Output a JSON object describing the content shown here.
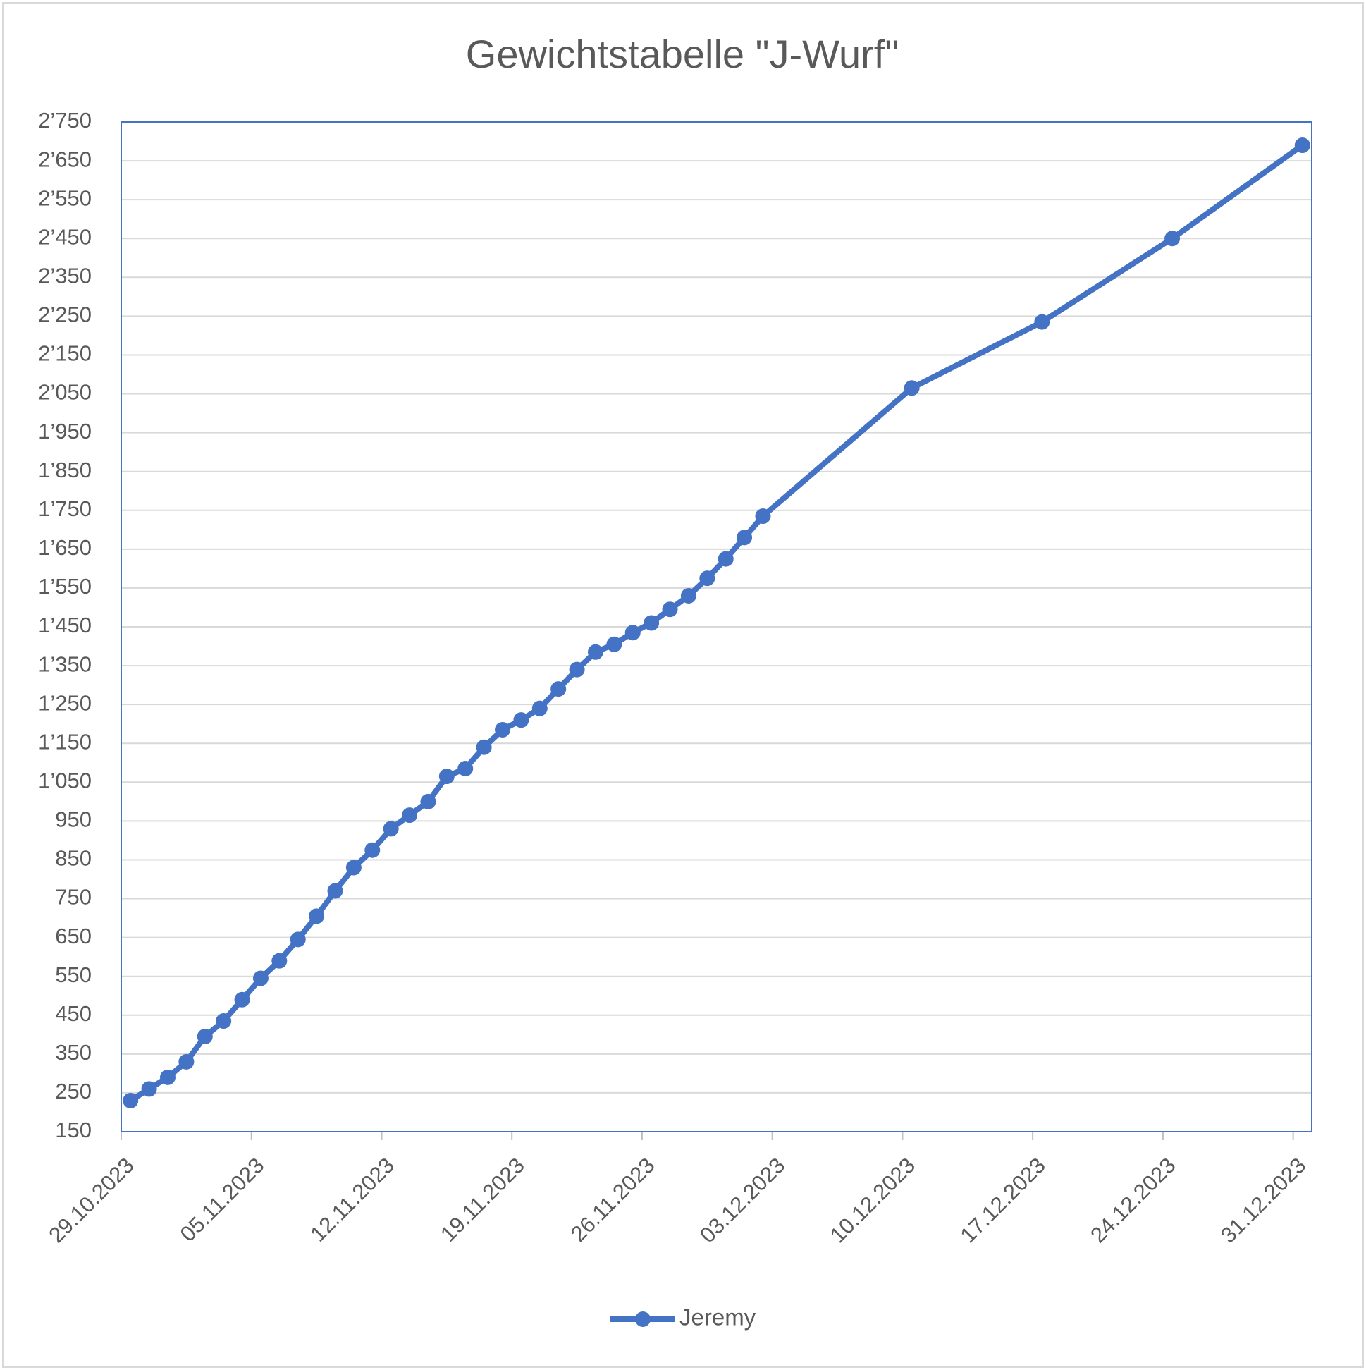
{
  "chart_data": {
    "type": "line",
    "title": "Gewichtstabelle \"J-Wurf\"",
    "x": [
      "29.10.2023",
      "30.10.2023",
      "31.10.2023",
      "01.11.2023",
      "02.11.2023",
      "03.11.2023",
      "04.11.2023",
      "05.11.2023",
      "06.11.2023",
      "07.11.2023",
      "08.11.2023",
      "09.11.2023",
      "10.11.2023",
      "11.11.2023",
      "12.11.2023",
      "13.11.2023",
      "14.11.2023",
      "15.11.2023",
      "16.11.2023",
      "17.11.2023",
      "18.11.2023",
      "19.11.2023",
      "20.11.2023",
      "21.11.2023",
      "22.11.2023",
      "23.11.2023",
      "24.11.2023",
      "25.11.2023",
      "26.11.2023",
      "27.11.2023",
      "28.11.2023",
      "29.11.2023",
      "30.11.2023",
      "01.12.2023",
      "02.12.2023",
      "10.12.2023",
      "17.12.2023",
      "24.12.2023",
      "31.12.2023"
    ],
    "series": [
      {
        "name": "Jeremy",
        "color": "#4472c4",
        "values": [
          230,
          260,
          290,
          330,
          395,
          435,
          490,
          545,
          590,
          645,
          705,
          770,
          830,
          875,
          930,
          965,
          1000,
          1065,
          1085,
          1140,
          1185,
          1210,
          1240,
          1290,
          1340,
          1385,
          1405,
          1435,
          1460,
          1495,
          1530,
          1575,
          1625,
          1680,
          1735,
          2065,
          2235,
          2450,
          2690
        ]
      }
    ],
    "xlim": [
      "29.10.2023",
      "01.01.2024"
    ],
    "xticks": [
      "29.10.2023",
      "05.11.2023",
      "12.11.2023",
      "19.11.2023",
      "26.11.2023",
      "03.12.2023",
      "10.12.2023",
      "17.12.2023",
      "24.12.2023",
      "31.12.2023"
    ],
    "ylim": [
      150,
      2750
    ],
    "yticks": [
      150,
      250,
      350,
      450,
      550,
      650,
      750,
      850,
      950,
      {
        "value": 1050,
        "label": "1’050"
      },
      {
        "value": 1150,
        "label": "1’150"
      },
      {
        "value": 1250,
        "label": "1’250"
      },
      {
        "value": 1350,
        "label": "1’350"
      },
      {
        "value": 1450,
        "label": "1’450"
      },
      {
        "value": 1550,
        "label": "1’550"
      },
      {
        "value": 1650,
        "label": "1’650"
      },
      {
        "value": 1750,
        "label": "1’750"
      },
      {
        "value": 1850,
        "label": "1’850"
      },
      {
        "value": 1950,
        "label": "1’950"
      },
      {
        "value": 2050,
        "label": "2’050"
      },
      {
        "value": 2150,
        "label": "2’150"
      },
      {
        "value": 2250,
        "label": "2’250"
      },
      {
        "value": 2350,
        "label": "2’350"
      },
      {
        "value": 2450,
        "label": "2’450"
      },
      {
        "value": 2550,
        "label": "2’550"
      },
      {
        "value": 2650,
        "label": "2’650"
      },
      {
        "value": 2750,
        "label": "2’750"
      }
    ],
    "grid": true,
    "legend": "bottom"
  }
}
